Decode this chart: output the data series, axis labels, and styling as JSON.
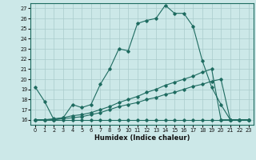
{
  "title": "",
  "xlabel": "Humidex (Indice chaleur)",
  "ylabel": "",
  "background_color": "#cce8e8",
  "grid_color": "#aacccc",
  "line_color": "#1e6b60",
  "xlim": [
    -0.5,
    23.5
  ],
  "ylim": [
    15.5,
    27.5
  ],
  "xticks": [
    0,
    1,
    2,
    3,
    4,
    5,
    6,
    7,
    8,
    9,
    10,
    11,
    12,
    13,
    14,
    15,
    16,
    17,
    18,
    19,
    20,
    21,
    22,
    23
  ],
  "yticks": [
    16,
    17,
    18,
    19,
    20,
    21,
    22,
    23,
    24,
    25,
    26,
    27
  ],
  "series": [
    {
      "x": [
        0,
        1,
        2,
        3,
        4,
        5,
        6,
        7,
        8,
        9,
        10,
        11,
        12,
        13,
        14,
        15,
        16,
        17,
        18,
        19,
        20,
        21,
        22,
        23
      ],
      "y": [
        19.2,
        17.8,
        16.0,
        16.2,
        17.5,
        17.2,
        17.5,
        19.5,
        21.0,
        23.0,
        22.8,
        25.5,
        25.8,
        26.0,
        27.3,
        26.5,
        26.5,
        25.2,
        21.8,
        19.2,
        17.5,
        16.0,
        16.0,
        16.0
      ]
    },
    {
      "x": [
        0,
        1,
        2,
        3,
        4,
        5,
        6,
        7,
        8,
        9,
        10,
        11,
        12,
        13,
        14,
        15,
        16,
        17,
        18,
        19,
        20,
        21,
        22,
        23
      ],
      "y": [
        16.0,
        16.0,
        16.0,
        16.0,
        16.0,
        16.0,
        16.0,
        16.0,
        16.0,
        16.0,
        16.0,
        16.0,
        16.0,
        16.0,
        16.0,
        16.0,
        16.0,
        16.0,
        16.0,
        16.0,
        16.0,
        16.0,
        16.0,
        16.0
      ]
    },
    {
      "x": [
        0,
        1,
        2,
        3,
        4,
        5,
        6,
        7,
        8,
        9,
        10,
        11,
        12,
        13,
        14,
        15,
        16,
        17,
        18,
        19,
        20,
        21,
        22,
        23
      ],
      "y": [
        16.0,
        16.0,
        16.0,
        16.1,
        16.2,
        16.3,
        16.5,
        16.7,
        17.0,
        17.3,
        17.5,
        17.7,
        18.0,
        18.2,
        18.5,
        18.7,
        19.0,
        19.3,
        19.5,
        19.8,
        20.0,
        16.0,
        16.0,
        16.0
      ]
    },
    {
      "x": [
        0,
        1,
        2,
        3,
        4,
        5,
        6,
        7,
        8,
        9,
        10,
        11,
        12,
        13,
        14,
        15,
        16,
        17,
        18,
        19,
        20,
        21,
        22,
        23
      ],
      "y": [
        16.0,
        16.0,
        16.1,
        16.2,
        16.4,
        16.5,
        16.7,
        17.0,
        17.3,
        17.7,
        18.0,
        18.3,
        18.7,
        19.0,
        19.4,
        19.7,
        20.0,
        20.3,
        20.7,
        21.0,
        16.0,
        16.0,
        16.0,
        16.0
      ]
    }
  ]
}
